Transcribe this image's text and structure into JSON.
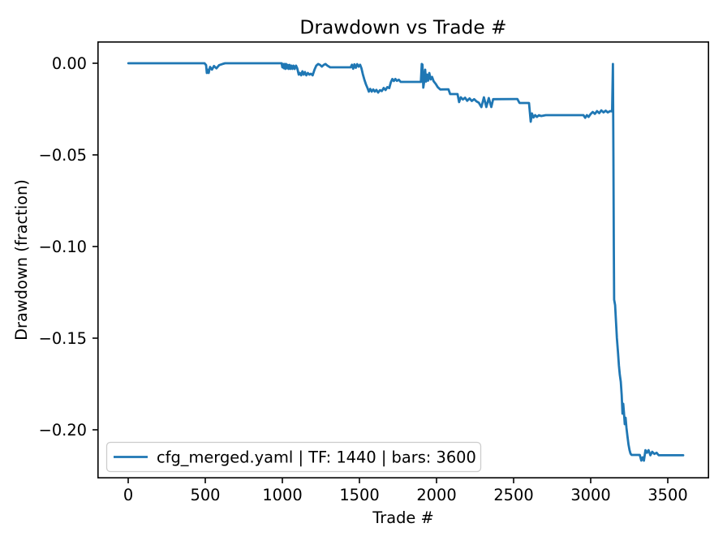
{
  "figure": {
    "background": "#ffffff",
    "colors": {
      "line": "#1f77b4",
      "text": "#000000",
      "spine": "#000000",
      "legend_border": "#cccccc",
      "legend_bg": "#ffffff"
    }
  },
  "chart_data": {
    "type": "line",
    "title": "Drawdown vs Trade #",
    "xlabel": "Trade #",
    "ylabel": "Drawdown (fraction)",
    "xlim": [
      -195,
      3763
    ],
    "ylim": [
      -0.2261,
      0.0115
    ],
    "x_ticks": [
      0,
      500,
      1000,
      1500,
      2000,
      2500,
      3000,
      3500
    ],
    "x_tick_labels": [
      "0",
      "500",
      "1000",
      "1500",
      "2000",
      "2500",
      "3000",
      "3500"
    ],
    "y_ticks": [
      0,
      -0.05,
      -0.1,
      -0.15,
      -0.2
    ],
    "y_tick_labels": [
      "0.00",
      "−0.05",
      "−0.10",
      "−0.15",
      "−0.20"
    ],
    "grid": false,
    "legend_position": "lower left",
    "series": [
      {
        "name": "cfg_merged.yaml | TF: 1440 | bars: 3600",
        "color": "#1f77b4",
        "points": [
          [
            1,
            0
          ],
          [
            495,
            0
          ],
          [
            505,
            -0.001
          ],
          [
            510,
            -0.0053
          ],
          [
            516,
            -0.0035
          ],
          [
            522,
            -0.0053
          ],
          [
            531,
            -0.002
          ],
          [
            543,
            -0.0035
          ],
          [
            556,
            -0.0015
          ],
          [
            572,
            -0.0028
          ],
          [
            590,
            -0.001
          ],
          [
            612,
            -0.0004
          ],
          [
            628,
            0
          ],
          [
            995,
            0
          ],
          [
            1000,
            -0.0022
          ],
          [
            1004,
            -0.0004
          ],
          [
            1009,
            -0.0027
          ],
          [
            1014,
            -0.0004
          ],
          [
            1019,
            -0.0031
          ],
          [
            1024,
            -0.0004
          ],
          [
            1029,
            -0.0027
          ],
          [
            1034,
            -0.0009
          ],
          [
            1040,
            -0.0031
          ],
          [
            1046,
            -0.0009
          ],
          [
            1052,
            -0.0031
          ],
          [
            1058,
            -0.0013
          ],
          [
            1065,
            -0.0031
          ],
          [
            1072,
            -0.0013
          ],
          [
            1080,
            -0.0031
          ],
          [
            1088,
            -0.0013
          ],
          [
            1096,
            -0.0027
          ],
          [
            1106,
            -0.0062
          ],
          [
            1114,
            -0.0053
          ],
          [
            1122,
            -0.0066
          ],
          [
            1130,
            -0.0044
          ],
          [
            1138,
            -0.0062
          ],
          [
            1146,
            -0.0048
          ],
          [
            1155,
            -0.0066
          ],
          [
            1165,
            -0.0053
          ],
          [
            1175,
            -0.0062
          ],
          [
            1185,
            -0.0057
          ],
          [
            1196,
            -0.0066
          ],
          [
            1208,
            -0.0035
          ],
          [
            1220,
            -0.0013
          ],
          [
            1232,
            -0.0004
          ],
          [
            1244,
            -0.0009
          ],
          [
            1256,
            -0.0018
          ],
          [
            1268,
            -0.0009
          ],
          [
            1280,
            -0.0004
          ],
          [
            1292,
            -0.0013
          ],
          [
            1310,
            -0.0022
          ],
          [
            1443,
            -0.0022
          ],
          [
            1451,
            -0.0008
          ],
          [
            1459,
            -0.003
          ],
          [
            1467,
            -0.0006
          ],
          [
            1476,
            -0.0025
          ],
          [
            1485,
            -0.0005
          ],
          [
            1494,
            -0.0018
          ],
          [
            1504,
            -0.0008
          ],
          [
            1513,
            -0.0028
          ],
          [
            1522,
            -0.006
          ],
          [
            1532,
            -0.009
          ],
          [
            1542,
            -0.0115
          ],
          [
            1552,
            -0.0135
          ],
          [
            1561,
            -0.0155
          ],
          [
            1570,
            -0.014
          ],
          [
            1579,
            -0.0155
          ],
          [
            1589,
            -0.0143
          ],
          [
            1599,
            -0.0155
          ],
          [
            1610,
            -0.0145
          ],
          [
            1621,
            -0.016
          ],
          [
            1633,
            -0.0147
          ],
          [
            1645,
            -0.0152
          ],
          [
            1657,
            -0.0135
          ],
          [
            1669,
            -0.0146
          ],
          [
            1681,
            -0.013
          ],
          [
            1693,
            -0.0136
          ],
          [
            1703,
            -0.0105
          ],
          [
            1713,
            -0.0086
          ],
          [
            1723,
            -0.0097
          ],
          [
            1733,
            -0.0086
          ],
          [
            1743,
            -0.0096
          ],
          [
            1755,
            -0.009
          ],
          [
            1767,
            -0.0102
          ],
          [
            1898,
            -0.0102
          ],
          [
            1904,
            -0.0004
          ],
          [
            1909,
            -0.0008
          ],
          [
            1914,
            -0.0133
          ],
          [
            1920,
            -0.01
          ],
          [
            1926,
            -0.0035
          ],
          [
            1932,
            -0.01
          ],
          [
            1938,
            -0.0062
          ],
          [
            1945,
            -0.0095
          ],
          [
            1953,
            -0.0053
          ],
          [
            1962,
            -0.0088
          ],
          [
            1971,
            -0.0075
          ],
          [
            1981,
            -0.0098
          ],
          [
            1994,
            -0.0112
          ],
          [
            2008,
            -0.0131
          ],
          [
            2024,
            -0.0143
          ],
          [
            2077,
            -0.0142
          ],
          [
            2088,
            -0.0168
          ],
          [
            2136,
            -0.0168
          ],
          [
            2146,
            -0.0212
          ],
          [
            2157,
            -0.0186
          ],
          [
            2171,
            -0.0198
          ],
          [
            2185,
            -0.0188
          ],
          [
            2199,
            -0.0205
          ],
          [
            2214,
            -0.0192
          ],
          [
            2229,
            -0.0206
          ],
          [
            2244,
            -0.0196
          ],
          [
            2259,
            -0.0208
          ],
          [
            2274,
            -0.0215
          ],
          [
            2291,
            -0.0239
          ],
          [
            2307,
            -0.0186
          ],
          [
            2323,
            -0.0239
          ],
          [
            2339,
            -0.019
          ],
          [
            2355,
            -0.0239
          ],
          [
            2367,
            -0.0196
          ],
          [
            2524,
            -0.0195
          ],
          [
            2538,
            -0.0217
          ],
          [
            2600,
            -0.0217
          ],
          [
            2611,
            -0.0319
          ],
          [
            2619,
            -0.0274
          ],
          [
            2629,
            -0.0296
          ],
          [
            2640,
            -0.0283
          ],
          [
            2651,
            -0.0293
          ],
          [
            2664,
            -0.0283
          ],
          [
            2678,
            -0.0288
          ],
          [
            2708,
            -0.0283
          ],
          [
            2953,
            -0.0283
          ],
          [
            2964,
            -0.0298
          ],
          [
            2975,
            -0.0283
          ],
          [
            2986,
            -0.0293
          ],
          [
            2999,
            -0.0278
          ],
          [
            3013,
            -0.0266
          ],
          [
            3027,
            -0.0276
          ],
          [
            3041,
            -0.0261
          ],
          [
            3055,
            -0.0272
          ],
          [
            3069,
            -0.0257
          ],
          [
            3083,
            -0.0268
          ],
          [
            3097,
            -0.0259
          ],
          [
            3111,
            -0.0268
          ],
          [
            3126,
            -0.0261
          ],
          [
            3139,
            -0.0263
          ],
          [
            3144,
            -0.0004
          ],
          [
            3147,
            -0.05
          ],
          [
            3150,
            -0.1
          ],
          [
            3152,
            -0.129
          ],
          [
            3158,
            -0.132
          ],
          [
            3164,
            -0.141
          ],
          [
            3170,
            -0.15
          ],
          [
            3177,
            -0.158
          ],
          [
            3183,
            -0.165
          ],
          [
            3189,
            -0.17
          ],
          [
            3195,
            -0.1738
          ],
          [
            3201,
            -0.181
          ],
          [
            3206,
            -0.1912
          ],
          [
            3211,
            -0.1858
          ],
          [
            3216,
            -0.1912
          ],
          [
            3221,
            -0.1969
          ],
          [
            3226,
            -0.1934
          ],
          [
            3232,
            -0.199
          ],
          [
            3238,
            -0.2035
          ],
          [
            3245,
            -0.208
          ],
          [
            3252,
            -0.2111
          ],
          [
            3258,
            -0.213
          ],
          [
            3265,
            -0.2137
          ],
          [
            3318,
            -0.2137
          ],
          [
            3328,
            -0.2168
          ],
          [
            3337,
            -0.215
          ],
          [
            3345,
            -0.2168
          ],
          [
            3355,
            -0.2111
          ],
          [
            3365,
            -0.2125
          ],
          [
            3375,
            -0.2111
          ],
          [
            3387,
            -0.2139
          ],
          [
            3399,
            -0.212
          ],
          [
            3413,
            -0.2132
          ],
          [
            3427,
            -0.2125
          ],
          [
            3441,
            -0.2139
          ],
          [
            3600,
            -0.2139
          ]
        ]
      }
    ]
  }
}
